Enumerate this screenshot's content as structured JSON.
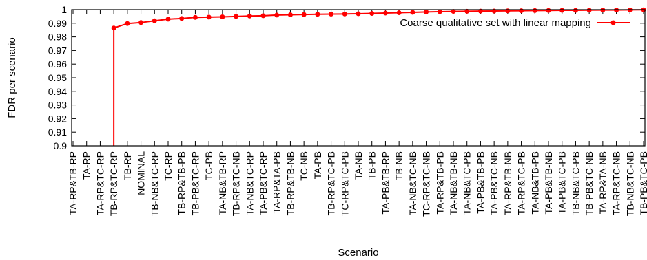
{
  "chart_data": {
    "type": "line",
    "title": "",
    "xlabel": "Scenario",
    "ylabel": "FDR per scenario",
    "ylim": [
      0.9,
      1.0
    ],
    "yticks": [
      "0.9",
      "0.91",
      "0.92",
      "0.93",
      "0.94",
      "0.95",
      "0.96",
      "0.97",
      "0.98",
      "0.99",
      "1"
    ],
    "grid": false,
    "legend_position": "top-right",
    "categories": [
      "TA-RP&TB-RP",
      "TA-RP",
      "TA-RP&TC-RP",
      "TB-RP&TC-RP",
      "TB-RP",
      "NOMINAL",
      "TB-NB&TC-RP",
      "TC-RP",
      "TB-RP&TB-PB",
      "TB-PB&TC-RP",
      "TC-PB",
      "TA-NB&TB-RP",
      "TB-RP&TC-NB",
      "TA-NB&TC-RP",
      "TA-PB&TC-RP",
      "TA-RP&TA-PB",
      "TB-RP&TB-NB",
      "TC-NB",
      "TA-PB",
      "TB-RP&TC-PB",
      "TC-RP&TC-PB",
      "TA-NB",
      "TB-PB",
      "TA-PB&TB-RP",
      "TB-NB",
      "TA-NB&TC-NB",
      "TC-RP&TC-NB",
      "TA-RP&TB-PB",
      "TA-NB&TB-NB",
      "TA-NB&TC-PB",
      "TA-PB&TB-PB",
      "TA-PB&TC-NB",
      "TA-RP&TB-NB",
      "TA-RP&TC-PB",
      "TA-NB&TB-PB",
      "TA-PB&TB-NB",
      "TA-PB&TC-PB",
      "TB-NB&TC-PB",
      "TB-PB&TC-NB",
      "TA-RP&TA-NB",
      "TA-RP&TC-NB",
      "TB-NB&TC-NB",
      "TB-PB&TC-PB"
    ],
    "series": [
      {
        "name": "Coarse qualitative set with linear mapping",
        "color": "#ff0000",
        "values": [
          null,
          null,
          null,
          0.9865,
          0.9898,
          0.9905,
          0.9918,
          0.993,
          0.9935,
          0.9943,
          0.9945,
          0.9947,
          0.995,
          0.9953,
          0.9955,
          0.996,
          0.9962,
          0.9964,
          0.9966,
          0.9967,
          0.9968,
          0.997,
          0.9972,
          0.9975,
          0.9977,
          0.998,
          0.9983,
          0.9985,
          0.9987,
          0.9988,
          0.9989,
          0.999,
          0.9991,
          0.9992,
          0.9993,
          0.9994,
          0.9995,
          0.9995,
          0.9996,
          0.9997,
          0.9997,
          0.9998,
          0.9999
        ]
      }
    ]
  },
  "icons": {
    "legend_marker": "red-dot-line"
  }
}
